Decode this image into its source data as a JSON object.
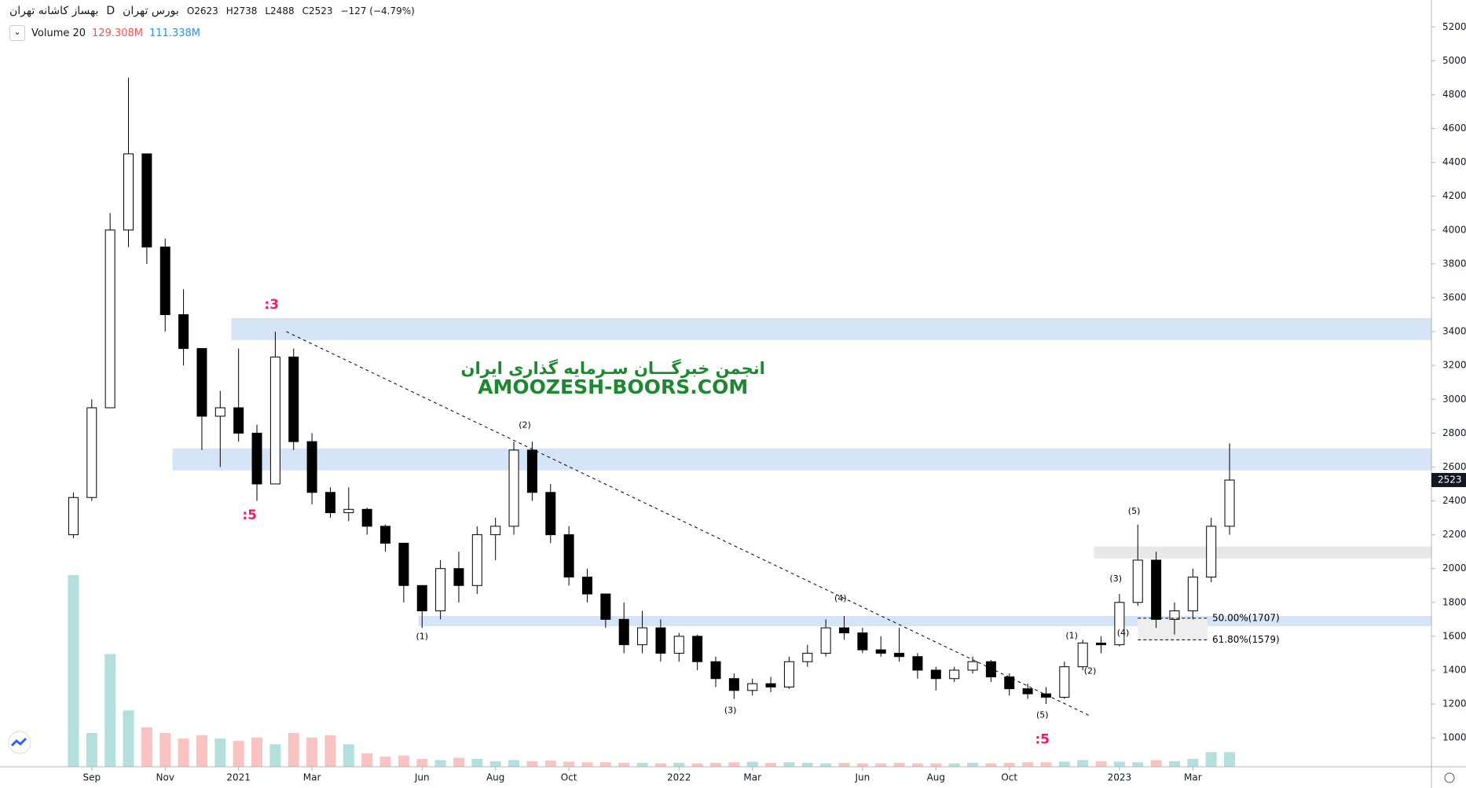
{
  "header": {
    "symbol": "بهساز کاشانه تهران",
    "interval": "D",
    "exchange": "بورس تهران",
    "ohlc": [
      "O2623",
      "H2738",
      "L2488",
      "C2523"
    ],
    "change": "−127 (−4.79%)",
    "volume_title": "Volume 20",
    "volume_value": "129.308M",
    "volume_ma": "111.338M"
  },
  "chart_data": {
    "type": "candlestick",
    "grid": false,
    "xlim": [
      -2.5,
      36.5
    ],
    "ylim": [
      829,
      5359
    ],
    "yticks": [
      1000,
      1200,
      1400,
      1600,
      1800,
      2000,
      2200,
      2400,
      2600,
      2800,
      3000,
      3200,
      3400,
      3600,
      3800,
      4000,
      4200,
      4400,
      4600,
      4800,
      5000,
      5200
    ],
    "xticks": [
      {
        "value": 0,
        "label": "Sep"
      },
      {
        "value": 2,
        "label": "Nov"
      },
      {
        "value": 4,
        "label": "2021"
      },
      {
        "value": 6,
        "label": "Mar"
      },
      {
        "value": 9,
        "label": "Jun"
      },
      {
        "value": 11,
        "label": "Aug"
      },
      {
        "value": 13,
        "label": "Oct"
      },
      {
        "value": 16,
        "label": "2022"
      },
      {
        "value": 18,
        "label": "Mar"
      },
      {
        "value": 21,
        "label": "Jun"
      },
      {
        "value": 23,
        "label": "Aug"
      },
      {
        "value": 25,
        "label": "Oct"
      },
      {
        "value": 28,
        "label": "2023"
      },
      {
        "value": 30,
        "label": "Mar"
      }
    ],
    "up_color": "#ffffff",
    "down_color": "#000000",
    "wick_color": "#000000",
    "candles": [
      {
        "x": -0.5,
        "open": 2200,
        "high": 2450,
        "low": 2180,
        "close": 2420
      },
      {
        "x": 0,
        "open": 2420,
        "high": 3000,
        "low": 2400,
        "close": 2950
      },
      {
        "x": 0.5,
        "open": 2950,
        "high": 4100,
        "low": 2950,
        "close": 4000
      },
      {
        "x": 1,
        "open": 4000,
        "high": 4900,
        "low": 3900,
        "close": 4450
      },
      {
        "x": 1.5,
        "open": 4450,
        "high": 4450,
        "low": 3800,
        "close": 3900
      },
      {
        "x": 2,
        "open": 3900,
        "high": 3950,
        "low": 3400,
        "close": 3500
      },
      {
        "x": 2.5,
        "open": 3500,
        "high": 3650,
        "low": 3200,
        "close": 3300
      },
      {
        "x": 3,
        "open": 3300,
        "high": 3300,
        "low": 2700,
        "close": 2900
      },
      {
        "x": 3.5,
        "open": 2900,
        "high": 3050,
        "low": 2600,
        "close": 2950
      },
      {
        "x": 4,
        "open": 2950,
        "high": 3300,
        "low": 2750,
        "close": 2800
      },
      {
        "x": 4.5,
        "open": 2800,
        "high": 2850,
        "low": 2400,
        "close": 2500
      },
      {
        "x": 5,
        "open": 2500,
        "high": 3400,
        "low": 2500,
        "close": 3250
      },
      {
        "x": 5.5,
        "open": 3250,
        "high": 3300,
        "low": 2700,
        "close": 2750
      },
      {
        "x": 6,
        "open": 2750,
        "high": 2800,
        "low": 2380,
        "close": 2450
      },
      {
        "x": 6.5,
        "open": 2450,
        "high": 2480,
        "low": 2300,
        "close": 2330
      },
      {
        "x": 7,
        "open": 2330,
        "high": 2480,
        "low": 2280,
        "close": 2350
      },
      {
        "x": 7.5,
        "open": 2350,
        "high": 2360,
        "low": 2200,
        "close": 2250
      },
      {
        "x": 8,
        "open": 2250,
        "high": 2260,
        "low": 2100,
        "close": 2150
      },
      {
        "x": 8.5,
        "open": 2150,
        "high": 2150,
        "low": 1800,
        "close": 1900
      },
      {
        "x": 9,
        "open": 1900,
        "high": 1900,
        "low": 1650,
        "close": 1750
      },
      {
        "x": 9.5,
        "open": 1750,
        "high": 2050,
        "low": 1700,
        "close": 2000
      },
      {
        "x": 10,
        "open": 2000,
        "high": 2100,
        "low": 1800,
        "close": 1900
      },
      {
        "x": 10.5,
        "open": 1900,
        "high": 2250,
        "low": 1850,
        "close": 2200
      },
      {
        "x": 11,
        "open": 2200,
        "high": 2300,
        "low": 2050,
        "close": 2250
      },
      {
        "x": 11.5,
        "open": 2250,
        "high": 2750,
        "low": 2200,
        "close": 2700
      },
      {
        "x": 12,
        "open": 2700,
        "high": 2750,
        "low": 2400,
        "close": 2450
      },
      {
        "x": 12.5,
        "open": 2450,
        "high": 2500,
        "low": 2150,
        "close": 2200
      },
      {
        "x": 13,
        "open": 2200,
        "high": 2250,
        "low": 1900,
        "close": 1950
      },
      {
        "x": 13.5,
        "open": 1950,
        "high": 2000,
        "low": 1800,
        "close": 1850
      },
      {
        "x": 14,
        "open": 1850,
        "high": 1850,
        "low": 1650,
        "close": 1700
      },
      {
        "x": 14.5,
        "open": 1700,
        "high": 1800,
        "low": 1500,
        "close": 1550
      },
      {
        "x": 15,
        "open": 1550,
        "high": 1750,
        "low": 1500,
        "close": 1650
      },
      {
        "x": 15.5,
        "open": 1650,
        "high": 1700,
        "low": 1450,
        "close": 1500
      },
      {
        "x": 16,
        "open": 1500,
        "high": 1620,
        "low": 1450,
        "close": 1600
      },
      {
        "x": 16.5,
        "open": 1600,
        "high": 1610,
        "low": 1400,
        "close": 1450
      },
      {
        "x": 17,
        "open": 1450,
        "high": 1480,
        "low": 1300,
        "close": 1350
      },
      {
        "x": 17.5,
        "open": 1350,
        "high": 1380,
        "low": 1230,
        "close": 1280
      },
      {
        "x": 18,
        "open": 1280,
        "high": 1350,
        "low": 1250,
        "close": 1320
      },
      {
        "x": 18.5,
        "open": 1320,
        "high": 1360,
        "low": 1270,
        "close": 1300
      },
      {
        "x": 19,
        "open": 1300,
        "high": 1480,
        "low": 1290,
        "close": 1450
      },
      {
        "x": 19.5,
        "open": 1450,
        "high": 1550,
        "low": 1420,
        "close": 1500
      },
      {
        "x": 20,
        "open": 1500,
        "high": 1700,
        "low": 1480,
        "close": 1650
      },
      {
        "x": 20.5,
        "open": 1650,
        "high": 1720,
        "low": 1580,
        "close": 1620
      },
      {
        "x": 21,
        "open": 1620,
        "high": 1650,
        "low": 1500,
        "close": 1520
      },
      {
        "x": 21.5,
        "open": 1520,
        "high": 1600,
        "low": 1480,
        "close": 1500
      },
      {
        "x": 22,
        "open": 1500,
        "high": 1650,
        "low": 1450,
        "close": 1480
      },
      {
        "x": 22.5,
        "open": 1480,
        "high": 1500,
        "low": 1350,
        "close": 1400
      },
      {
        "x": 23,
        "open": 1400,
        "high": 1420,
        "low": 1280,
        "close": 1350
      },
      {
        "x": 23.5,
        "open": 1350,
        "high": 1420,
        "low": 1330,
        "close": 1400
      },
      {
        "x": 24,
        "open": 1400,
        "high": 1480,
        "low": 1380,
        "close": 1450
      },
      {
        "x": 24.5,
        "open": 1450,
        "high": 1460,
        "low": 1330,
        "close": 1360
      },
      {
        "x": 25,
        "open": 1360,
        "high": 1380,
        "low": 1250,
        "close": 1290
      },
      {
        "x": 25.5,
        "open": 1290,
        "high": 1320,
        "low": 1230,
        "close": 1260
      },
      {
        "x": 26,
        "open": 1260,
        "high": 1300,
        "low": 1200,
        "close": 1240
      },
      {
        "x": 26.5,
        "open": 1240,
        "high": 1450,
        "low": 1230,
        "close": 1420
      },
      {
        "x": 27,
        "open": 1420,
        "high": 1580,
        "low": 1400,
        "close": 1560
      },
      {
        "x": 27.5,
        "open": 1560,
        "high": 1600,
        "low": 1500,
        "close": 1550
      },
      {
        "x": 28,
        "open": 1550,
        "high": 1850,
        "low": 1540,
        "close": 1800
      },
      {
        "x": 28.5,
        "open": 1800,
        "high": 2260,
        "low": 1780,
        "close": 2050
      },
      {
        "x": 29,
        "open": 2050,
        "high": 2100,
        "low": 1650,
        "close": 1700
      },
      {
        "x": 29.5,
        "open": 1700,
        "high": 1800,
        "low": 1610,
        "close": 1750
      },
      {
        "x": 30,
        "open": 1750,
        "high": 2000,
        "low": 1700,
        "close": 1950
      },
      {
        "x": 30.5,
        "open": 1950,
        "high": 2300,
        "low": 1920,
        "close": 2250
      },
      {
        "x": 31,
        "open": 2250,
        "high": 2740,
        "low": 2200,
        "close": 2523
      }
    ],
    "volume": [
      1700,
      300,
      1000,
      500,
      350,
      300,
      250,
      280,
      250,
      230,
      260,
      200,
      300,
      260,
      280,
      200,
      120,
      90,
      100,
      70,
      60,
      80,
      70,
      50,
      60,
      50,
      55,
      45,
      40,
      40,
      35,
      35,
      30,
      35,
      30,
      35,
      40,
      45,
      35,
      40,
      35,
      30,
      35,
      30,
      30,
      35,
      30,
      30,
      30,
      35,
      30,
      35,
      40,
      40,
      45,
      60,
      50,
      45,
      40,
      60,
      50,
      70,
      130,
      129.308
    ],
    "zones": [
      {
        "from": 3350,
        "to": 3480,
        "x": 3.8,
        "color": "#d6e4f8"
      },
      {
        "from": 2580,
        "to": 2710,
        "x": 2.2,
        "color": "#d6e4f8"
      },
      {
        "from": 1660,
        "to": 1720,
        "x": 8.9,
        "color": "#d6e4f8"
      },
      {
        "from": 2060,
        "to": 2130,
        "x": 27.3,
        "color": "#e8e8e8"
      },
      {
        "from": 1579,
        "to": 1707,
        "x": 28.5,
        "x_end": 30.4,
        "color": "#eeeeee"
      }
    ],
    "trendline": {
      "from": [
        5.3,
        3400
      ],
      "to": [
        27.2,
        1130
      ]
    },
    "fib": {
      "x": [
        28.5,
        30.4
      ],
      "levels": [
        {
          "value": 1707,
          "label": "50.00%(1707)"
        },
        {
          "value": 1579,
          "label": "61.80%(1579)"
        }
      ]
    },
    "annotations": [
      {
        "text": ":3",
        "x": 4.9,
        "y": 3558,
        "color": "#e91e63"
      },
      {
        "text": ":5",
        "x": 4.3,
        "y": 2315,
        "color": "#e91e63"
      },
      {
        "text": ":5",
        "x": 25.9,
        "y": 989,
        "color": "#e91e63"
      },
      {
        "text": "(1)",
        "x": 9.0,
        "y": 1597,
        "color": "#000000"
      },
      {
        "text": "(2)",
        "x": 11.8,
        "y": 2845,
        "color": "#000000"
      },
      {
        "text": "(3)",
        "x": 17.4,
        "y": 1160,
        "color": "#000000"
      },
      {
        "text": "(4)",
        "x": 20.4,
        "y": 1823,
        "color": "#000000"
      },
      {
        "text": "(5)",
        "x": 25.9,
        "y": 1133,
        "color": "#000000"
      },
      {
        "text": "(1)",
        "x": 26.7,
        "y": 1602,
        "color": "#000000"
      },
      {
        "text": "(2)",
        "x": 27.2,
        "y": 1392,
        "color": "#000000"
      },
      {
        "text": "(3)",
        "x": 27.9,
        "y": 1939,
        "color": "#000000"
      },
      {
        "text": "(4)",
        "x": 28.1,
        "y": 1619,
        "color": "#000000"
      },
      {
        "text": "(5)",
        "x": 28.4,
        "y": 2337,
        "color": "#000000"
      }
    ],
    "watermark": {
      "lines": [
        "انجمن خبرگـــان سـرمایه گذاری ایران",
        "AMOOZESH-BOORS.COM"
      ],
      "x": 14.2,
      "y": [
        3177,
        3066
      ],
      "color": "#1b8a2e"
    }
  }
}
